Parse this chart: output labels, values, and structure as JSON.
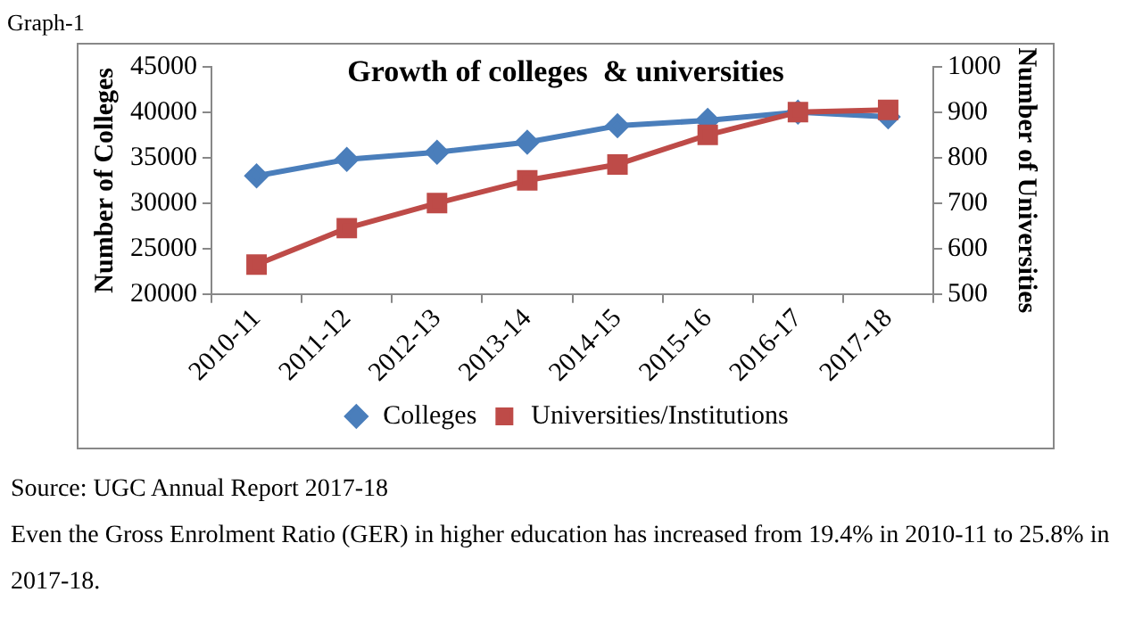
{
  "chart_data": {
    "type": "line",
    "title": "Growth of colleges  & universities",
    "categories": [
      "2010-11",
      "2011-12",
      "2012-13",
      "2013-14",
      "2014-15",
      "2015-16",
      "2016-17",
      "2017-18"
    ],
    "series": [
      {
        "name": "Colleges",
        "color": "#4a7ebb",
        "marker": "diamond",
        "values": [
          33000,
          34800,
          35600,
          36700,
          38500,
          39100,
          40000,
          39500
        ]
      },
      {
        "name": "Universities/Institutions",
        "color": "#be4b48",
        "marker": "square",
        "axis": "y2",
        "values": [
          565,
          645,
          700,
          750,
          785,
          850,
          900,
          905
        ]
      }
    ],
    "ylabel": "Number of Colleges",
    "y2label": "Number of Universities",
    "ylim": [
      20000,
      45000
    ],
    "yticks": [
      20000,
      25000,
      30000,
      35000,
      40000,
      45000
    ],
    "y2lim": [
      500,
      1000
    ],
    "y2ticks": [
      500,
      600,
      700,
      800,
      900,
      1000
    ],
    "grid": false,
    "legend": "bottom",
    "annotations": [
      "Graph-1",
      "Source: UGC Annual Report 2017-18",
      "Even the Gross Enrolment Ratio (GER) in higher education has increased from 19.4% in 2010-11 to 25.8% in 2017-18."
    ]
  }
}
